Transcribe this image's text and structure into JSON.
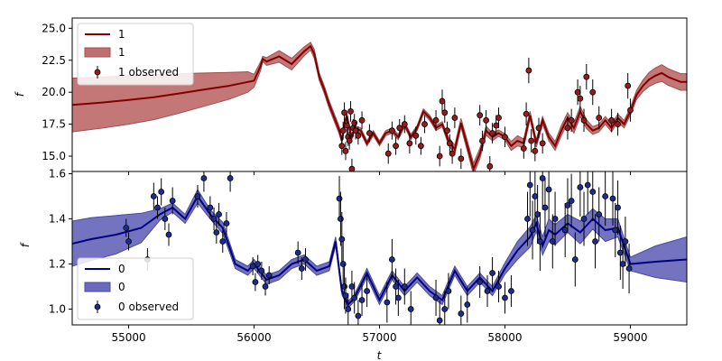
{
  "chart_data": [
    {
      "type": "line",
      "panel": "top",
      "xlabel": "",
      "ylabel": "f",
      "xlim": [
        54550,
        59450
      ],
      "ylim": [
        13.8,
        25.8
      ],
      "yticks": [
        "15.0",
        "17.5",
        "20.0",
        "22.5",
        "25.0"
      ],
      "ytick_values": [
        15.0,
        17.5,
        20.0,
        22.5,
        25.0
      ],
      "xticks": [
        55000,
        56000,
        57000,
        58000,
        59000
      ],
      "legend_position": "upper-left",
      "legend": [
        {
          "label": "1",
          "kind": "line"
        },
        {
          "label": "1",
          "kind": "band"
        },
        {
          "label": "1 observed",
          "kind": "errorbar"
        }
      ],
      "colors": {
        "line": "#800000",
        "band": "#c07070",
        "band_edge": "#a05050",
        "point": "#9b1b1b"
      },
      "series": [
        {
          "name": "1",
          "x": [
            54550,
            54800,
            55000,
            55200,
            55400,
            55600,
            55800,
            55950,
            56000,
            56050,
            56070,
            56100,
            56200,
            56300,
            56400,
            56450,
            56480,
            56520,
            56560,
            56600,
            56640,
            56680,
            56700,
            56720,
            56740,
            56760,
            56780,
            56800,
            56850,
            56900,
            56950,
            57000,
            57050,
            57100,
            57150,
            57200,
            57250,
            57300,
            57350,
            57400,
            57450,
            57500,
            57550,
            57600,
            57650,
            57700,
            57750,
            57800,
            57850,
            57900,
            57950,
            58000,
            58050,
            58100,
            58150,
            58200,
            58250,
            58300,
            58350,
            58400,
            58450,
            58500,
            58550,
            58600,
            58650,
            58700,
            58750,
            58800,
            58850,
            58900,
            58950,
            59000,
            59050,
            59100,
            59150,
            59200,
            59250,
            59300,
            59350,
            59400,
            59450
          ],
          "y": [
            19.0,
            19.2,
            19.4,
            19.6,
            19.9,
            20.2,
            20.5,
            20.8,
            20.9,
            22.0,
            22.6,
            22.4,
            22.8,
            22.2,
            23.2,
            23.6,
            23.0,
            21.2,
            20.2,
            19.0,
            18.0,
            17.0,
            16.2,
            17.5,
            18.2,
            17.2,
            16.5,
            17.2,
            17.0,
            16.0,
            16.8,
            16.0,
            16.8,
            17.0,
            16.5,
            17.5,
            16.5,
            17.2,
            18.5,
            18.0,
            17.2,
            17.5,
            16.2,
            15.5,
            17.6,
            15.8,
            14.0,
            15.2,
            17.0,
            16.5,
            16.8,
            16.5,
            15.8,
            16.2,
            16.0,
            18.2,
            16.0,
            17.8,
            16.5,
            15.8,
            17.0,
            18.0,
            17.2,
            18.5,
            17.5,
            17.0,
            17.2,
            17.8,
            17.2,
            18.0,
            17.5,
            18.5,
            19.8,
            20.5,
            21.0,
            21.3,
            21.5,
            21.2,
            21.0,
            20.8,
            20.8
          ],
          "band_half_width": [
            2.1,
            2.0,
            1.9,
            1.75,
            1.55,
            1.3,
            1.05,
            0.8,
            0.5,
            0.35,
            0.2,
            0.3,
            0.45,
            0.45,
            0.35,
            0.3,
            0.35,
            0.3,
            0.3,
            0.3,
            0.3,
            0.3,
            0.2,
            0.15,
            0.15,
            0.15,
            0.15,
            0.2,
            0.2,
            0.2,
            0.2,
            0.2,
            0.2,
            0.2,
            0.2,
            0.2,
            0.2,
            0.2,
            0.2,
            0.2,
            0.2,
            0.2,
            0.3,
            0.35,
            0.35,
            0.4,
            0.45,
            0.4,
            0.35,
            0.3,
            0.25,
            0.25,
            0.35,
            0.4,
            0.35,
            0.3,
            0.3,
            0.3,
            0.3,
            0.35,
            0.4,
            0.4,
            0.4,
            0.4,
            0.35,
            0.3,
            0.3,
            0.3,
            0.3,
            0.3,
            0.3,
            0.3,
            0.35,
            0.45,
            0.55,
            0.6,
            0.65,
            0.65,
            0.65,
            0.65,
            0.65
          ]
        },
        {
          "name": "1 observed",
          "type": "errorbar",
          "x": [
            56700,
            56710,
            56720,
            56730,
            56740,
            56750,
            56760,
            56770,
            56780,
            56790,
            56800,
            56810,
            56830,
            56860,
            56920,
            57070,
            57100,
            57130,
            57160,
            57200,
            57240,
            57290,
            57330,
            57360,
            57450,
            57480,
            57500,
            57520,
            57540,
            57560,
            57580,
            57600,
            57650,
            57800,
            57820,
            57850,
            57880,
            57900,
            57930,
            57950,
            58000,
            58150,
            58170,
            58190,
            58210,
            58240,
            58270,
            58300,
            58500,
            58530,
            58580,
            58600,
            58630,
            58650,
            58700,
            58750,
            58850,
            58900,
            58980,
            59000
          ],
          "y": [
            15.8,
            17.0,
            18.4,
            15.4,
            17.4,
            16.5,
            16.2,
            18.5,
            14.0,
            17.2,
            17.6,
            17.0,
            16.6,
            17.8,
            16.8,
            15.2,
            17.0,
            15.8,
            17.2,
            17.5,
            16.0,
            16.6,
            15.8,
            17.5,
            17.8,
            15.0,
            19.3,
            18.4,
            17.0,
            16.0,
            15.2,
            18.0,
            14.8,
            18.2,
            16.2,
            17.8,
            14.2,
            16.8,
            17.4,
            18.0,
            16.5,
            15.6,
            18.3,
            21.7,
            16.2,
            15.4,
            17.2,
            16.0,
            17.2,
            17.8,
            20.0,
            19.5,
            17.8,
            21.2,
            20.0,
            18.0,
            17.8,
            17.5,
            20.5,
            18.6
          ],
          "yerr": [
            0.7,
            0.7,
            0.8,
            0.7,
            0.7,
            0.7,
            0.7,
            0.8,
            0.8,
            0.7,
            0.7,
            0.7,
            0.7,
            0.7,
            0.7,
            0.8,
            0.7,
            0.7,
            0.7,
            0.7,
            0.8,
            0.7,
            0.7,
            0.7,
            0.8,
            0.8,
            0.9,
            0.8,
            0.7,
            0.7,
            0.8,
            0.8,
            0.8,
            0.8,
            0.8,
            0.8,
            0.8,
            0.8,
            0.8,
            0.8,
            0.8,
            0.8,
            0.9,
            1.0,
            0.9,
            0.8,
            0.8,
            0.8,
            0.9,
            0.9,
            1.0,
            1.0,
            0.9,
            1.0,
            1.0,
            0.9,
            0.9,
            0.9,
            1.0,
            0.9
          ]
        }
      ]
    },
    {
      "type": "line",
      "panel": "bottom",
      "xlabel": "t",
      "ylabel": "f",
      "xlim": [
        54550,
        59450
      ],
      "ylim": [
        0.93,
        1.61
      ],
      "yticks": [
        "1.0",
        "1.2",
        "1.4",
        "1.6"
      ],
      "ytick_values": [
        1.0,
        1.2,
        1.4,
        1.6
      ],
      "xticks": [
        "55000",
        "56000",
        "57000",
        "58000",
        "59000"
      ],
      "xtick_values": [
        55000,
        56000,
        57000,
        58000,
        59000
      ],
      "legend_position": "lower-left",
      "legend": [
        {
          "label": "0",
          "kind": "line"
        },
        {
          "label": "0",
          "kind": "band"
        },
        {
          "label": "0 observed",
          "kind": "errorbar"
        }
      ],
      "colors": {
        "line": "#000080",
        "band": "#6b6bbd",
        "band_edge": "#4a4aa0",
        "point": "#1f2c8f"
      },
      "series": [
        {
          "name": "0",
          "x": [
            54550,
            54700,
            54900,
            55100,
            55250,
            55350,
            55450,
            55550,
            55650,
            55750,
            55850,
            55950,
            56000,
            56100,
            56200,
            56300,
            56400,
            56500,
            56600,
            56650,
            56700,
            56750,
            56800,
            56900,
            57000,
            57100,
            57200,
            57300,
            57400,
            57500,
            57600,
            57700,
            57800,
            57900,
            58000,
            58100,
            58200,
            58250,
            58300,
            58350,
            58400,
            58500,
            58600,
            58700,
            58800,
            58900,
            59000,
            59200,
            59450
          ],
          "y": [
            1.29,
            1.31,
            1.33,
            1.36,
            1.42,
            1.45,
            1.4,
            1.5,
            1.42,
            1.36,
            1.2,
            1.17,
            1.2,
            1.13,
            1.15,
            1.2,
            1.22,
            1.17,
            1.19,
            1.3,
            1.08,
            1.02,
            1.05,
            1.16,
            1.04,
            1.15,
            1.08,
            1.14,
            1.08,
            1.04,
            1.17,
            1.08,
            1.14,
            1.08,
            1.18,
            1.26,
            1.32,
            1.38,
            1.28,
            1.35,
            1.33,
            1.38,
            1.34,
            1.4,
            1.35,
            1.36,
            1.2,
            1.21,
            1.22
          ],
          "band_half_width": [
            0.1,
            0.095,
            0.085,
            0.065,
            0.025,
            0.02,
            0.02,
            0.03,
            0.02,
            0.025,
            0.02,
            0.02,
            0.02,
            0.02,
            0.02,
            0.02,
            0.02,
            0.02,
            0.02,
            0.02,
            0.015,
            0.015,
            0.015,
            0.02,
            0.02,
            0.02,
            0.02,
            0.02,
            0.02,
            0.02,
            0.02,
            0.02,
            0.02,
            0.02,
            0.025,
            0.04,
            0.045,
            0.035,
            0.04,
            0.05,
            0.045,
            0.04,
            0.05,
            0.045,
            0.05,
            0.04,
            0.03,
            0.07,
            0.1
          ]
        },
        {
          "name": "0 observed",
          "type": "errorbar",
          "x": [
            54980,
            55000,
            55150,
            55200,
            55230,
            55260,
            55290,
            55320,
            55350,
            55550,
            55600,
            55650,
            55680,
            55700,
            55720,
            55750,
            55780,
            55810,
            55990,
            56010,
            56030,
            56060,
            56090,
            56120,
            56350,
            56380,
            56410,
            56680,
            56690,
            56700,
            56710,
            56720,
            56730,
            56750,
            56780,
            56800,
            56830,
            56860,
            56900,
            57060,
            57100,
            57130,
            57150,
            57200,
            57250,
            57450,
            57480,
            57520,
            57550,
            57650,
            57700,
            57800,
            57860,
            57900,
            57950,
            58000,
            58050,
            58180,
            58200,
            58220,
            58240,
            58260,
            58280,
            58300,
            58320,
            58350,
            58380,
            58400,
            58480,
            58500,
            58530,
            58560,
            58600,
            58630,
            58660,
            58700,
            58720,
            58750,
            58800,
            58860,
            58880,
            58900,
            58920,
            58940,
            58960,
            58990
          ],
          "y": [
            1.36,
            1.3,
            1.22,
            1.5,
            1.45,
            1.52,
            1.4,
            1.33,
            1.48,
            1.5,
            1.58,
            1.45,
            1.4,
            1.34,
            1.42,
            1.3,
            1.38,
            1.58,
            1.19,
            1.12,
            1.2,
            1.17,
            1.1,
            1.15,
            1.25,
            1.18,
            1.22,
            1.49,
            1.4,
            1.31,
            1.2,
            1.1,
            1.06,
            1.0,
            1.1,
            1.05,
            0.97,
            1.04,
            1.08,
            1.03,
            1.22,
            1.1,
            1.05,
            1.1,
            1.0,
            1.05,
            0.95,
            1.0,
            1.08,
            0.98,
            1.02,
            1.12,
            1.08,
            1.16,
            1.1,
            1.05,
            1.08,
            1.4,
            1.55,
            1.35,
            1.5,
            1.42,
            1.3,
            1.58,
            1.45,
            1.53,
            1.3,
            1.4,
            1.35,
            1.46,
            1.48,
            1.22,
            1.54,
            1.4,
            1.55,
            1.52,
            1.3,
            1.42,
            1.5,
            1.49,
            1.35,
            1.45,
            1.25,
            1.2,
            1.3,
            1.18
          ],
          "yerr": [
            0.04,
            0.04,
            0.05,
            0.06,
            0.05,
            0.06,
            0.05,
            0.05,
            0.06,
            0.05,
            0.06,
            0.05,
            0.05,
            0.05,
            0.05,
            0.05,
            0.05,
            0.06,
            0.04,
            0.04,
            0.04,
            0.04,
            0.04,
            0.04,
            0.05,
            0.05,
            0.05,
            0.1,
            0.12,
            0.12,
            0.1,
            0.1,
            0.08,
            0.07,
            0.07,
            0.07,
            0.07,
            0.07,
            0.07,
            0.09,
            0.09,
            0.08,
            0.08,
            0.08,
            0.08,
            0.08,
            0.09,
            0.08,
            0.08,
            0.08,
            0.08,
            0.07,
            0.07,
            0.07,
            0.07,
            0.07,
            0.07,
            0.12,
            0.14,
            0.13,
            0.13,
            0.13,
            0.13,
            0.14,
            0.13,
            0.13,
            0.12,
            0.12,
            0.12,
            0.12,
            0.12,
            0.12,
            0.13,
            0.12,
            0.13,
            0.13,
            0.12,
            0.12,
            0.13,
            0.12,
            0.12,
            0.12,
            0.12,
            0.11,
            0.11,
            0.11
          ]
        }
      ]
    }
  ]
}
